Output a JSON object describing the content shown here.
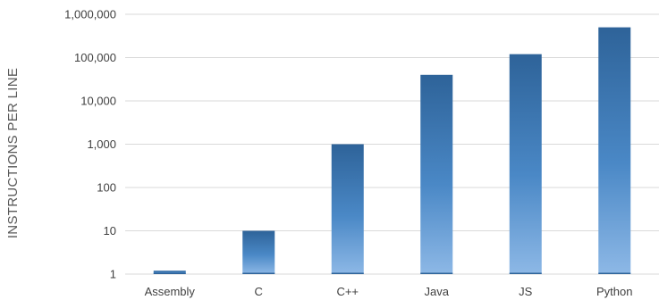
{
  "chart_data": {
    "type": "bar",
    "title": "",
    "xlabel": "",
    "ylabel": "INSTRUCTIONS PER LINE",
    "y_scale": "log",
    "ylim": [
      1,
      1000000
    ],
    "y_ticks": [
      1,
      10,
      100,
      1000,
      10000,
      100000,
      1000000
    ],
    "y_tick_labels": [
      "1",
      "10",
      "100",
      "1,000",
      "10,000",
      "100,000",
      "1,000,000"
    ],
    "grid": true,
    "legend": "none",
    "categories": [
      "Assembly",
      "C",
      "C++",
      "Java",
      "JS",
      "Python"
    ],
    "values": [
      1.2,
      10,
      1000,
      40000,
      120000,
      500000
    ],
    "colors": {
      "bar_top": "#2E6399",
      "bar_mid": "#4A88C6",
      "bar_bottom": "#8DB8E6",
      "grid": "#D9D9D9"
    }
  }
}
